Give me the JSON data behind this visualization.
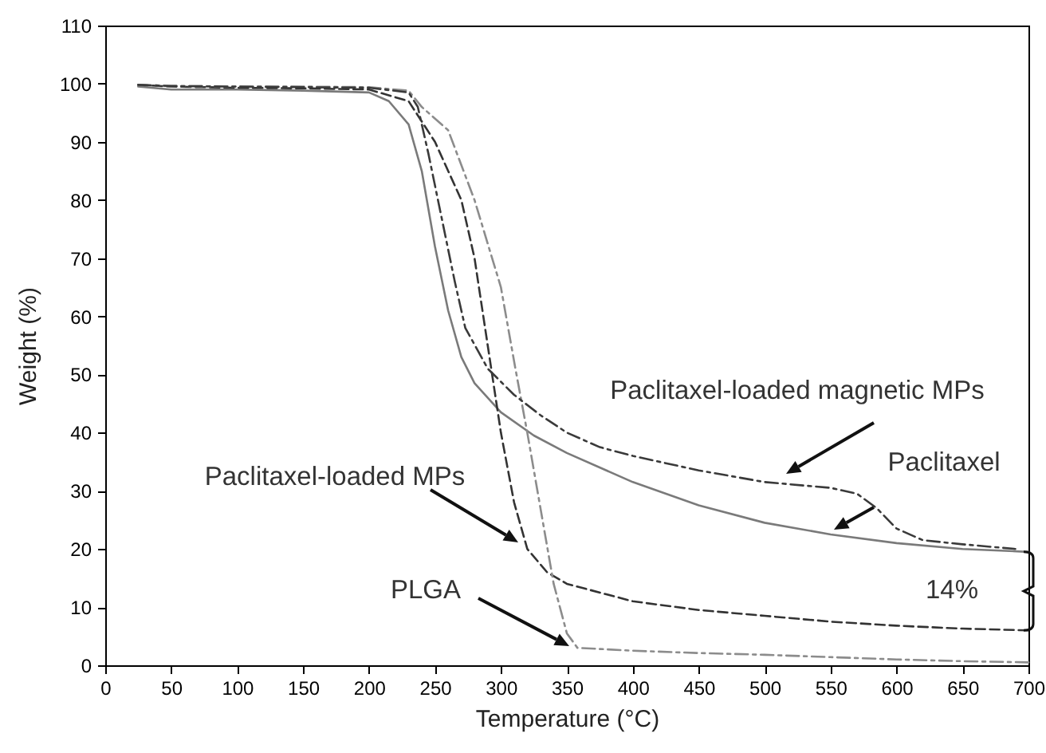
{
  "chart_data": {
    "type": "line",
    "xlabel": "Temperature (°C)",
    "ylabel": "Weight (%)",
    "xlim": [
      0,
      700
    ],
    "ylim": [
      0,
      110
    ],
    "xticks": [
      0,
      50,
      100,
      150,
      200,
      250,
      300,
      350,
      400,
      450,
      500,
      550,
      600,
      650,
      700
    ],
    "yticks": [
      0,
      10,
      20,
      30,
      40,
      50,
      60,
      70,
      80,
      90,
      100,
      110
    ],
    "series": [
      {
        "color": "#7a7a7a",
        "line_style": "solid",
        "x": [
          25,
          50,
          100,
          150,
          200,
          215,
          230,
          240,
          250,
          260,
          270,
          280,
          300,
          325,
          350,
          400,
          450,
          500,
          550,
          600,
          650,
          700
        ],
        "values": [
          99.5,
          99,
          99,
          98.8,
          98.5,
          97,
          93,
          85,
          72,
          61,
          53,
          48.5,
          43.5,
          39.5,
          36.5,
          31.5,
          27.5,
          24.5,
          22.5,
          21,
          20,
          19.5
        ]
      },
      {
        "color": "#333333",
        "line_style": "dashed",
        "x": [
          25,
          50,
          100,
          150,
          200,
          230,
          250,
          270,
          280,
          290,
          300,
          310,
          320,
          335,
          350,
          400,
          450,
          500,
          550,
          600,
          650,
          700
        ],
        "values": [
          99.8,
          99.5,
          99.3,
          99.2,
          99,
          97,
          90,
          80,
          70,
          55,
          40,
          28,
          20,
          16,
          14,
          11,
          9.5,
          8.5,
          7.5,
          6.8,
          6.3,
          6
        ]
      },
      {
        "color": "#8c8c8c",
        "line_style": "dotted",
        "x": [
          25,
          50,
          100,
          150,
          200,
          230,
          240,
          260,
          280,
          300,
          311,
          320,
          330,
          340,
          350,
          358,
          400,
          450,
          500,
          550,
          600,
          650,
          700
        ],
        "values": [
          99.8,
          99.6,
          99.5,
          99.5,
          99.4,
          98.8,
          96,
          92,
          80,
          65,
          51,
          40,
          27,
          14,
          5.5,
          3,
          2.5,
          2.1,
          1.8,
          1.4,
          1,
          0.7,
          0.5
        ]
      },
      {
        "color": "#3a3a3a",
        "line_style": "dotted",
        "x": [
          25,
          50,
          100,
          150,
          200,
          230,
          237,
          245,
          255,
          265,
          273,
          290,
          310,
          330,
          350,
          375,
          400,
          450,
          500,
          550,
          570,
          585,
          600,
          620,
          650,
          690
        ],
        "values": [
          99.8,
          99.6,
          99.5,
          99.4,
          99.3,
          98.5,
          96,
          88,
          77,
          66,
          58,
          51,
          46.5,
          43,
          40,
          37.5,
          36,
          33.5,
          31.5,
          30.5,
          29.5,
          27,
          23.5,
          21.5,
          20.8,
          20
        ]
      }
    ],
    "annotations": [
      "Paclitaxel-loaded magnetic MPs",
      "Paclitaxel",
      "Paclitaxel-loaded MPs",
      "PLGA",
      "14%"
    ]
  }
}
